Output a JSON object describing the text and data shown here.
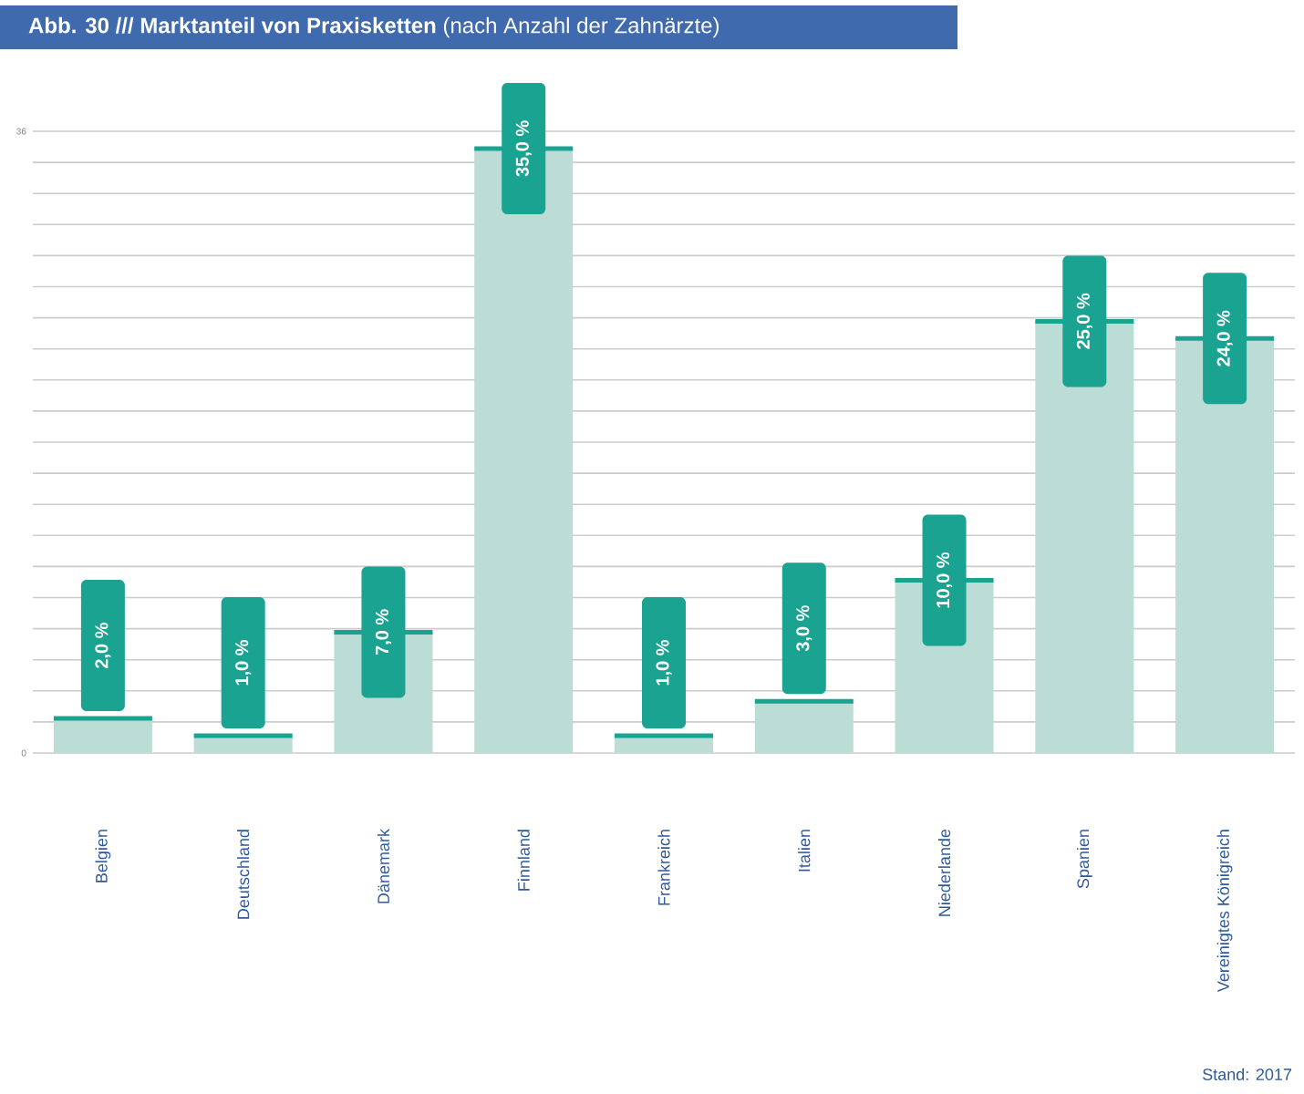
{
  "chart_data": {
    "type": "bar",
    "title": "Abb. 30 /// Marktanteil von Praxisketten",
    "subtitle": "(nach Anzahl der Zahnärzte)",
    "categories": [
      "Belgien",
      "Deutschland",
      "Dänemark",
      "Finnland",
      "Frankreich",
      "Italien",
      "Niederlande",
      "Spanien",
      "Vereinigtes Königreich"
    ],
    "values": [
      2,
      1,
      7,
      35,
      1,
      3,
      10,
      25,
      24
    ],
    "value_labels": [
      "2,0 %",
      "1,0 %",
      "7,0 %",
      "35,0 %",
      "1,0 %",
      "3,0 %",
      "10,0 %",
      "25,0 %",
      "24,0 %"
    ],
    "color": "#bcdcd6",
    "ylim": [
      0,
      36
    ],
    "yticks": [
      0,
      {
        "value": 1.8,
        "label": null
      },
      {
        "value": 3.6,
        "label": null
      },
      {
        "value": 5.4,
        "label": null
      },
      {
        "value": 7.2,
        "label": null
      },
      {
        "value": 9,
        "label": null
      },
      {
        "value": 10.8,
        "label": null
      },
      {
        "value": 12.6,
        "label": null
      },
      {
        "value": 14.4,
        "label": null
      },
      {
        "value": 16.2,
        "label": null
      },
      {
        "value": 18,
        "label": null
      },
      {
        "value": 19.8,
        "label": null
      },
      {
        "value": 21.6,
        "label": null
      },
      {
        "value": 23.4,
        "label": null
      },
      {
        "value": 25.2,
        "label": null
      },
      {
        "value": 27,
        "label": null
      },
      {
        "value": 28.8,
        "label": null
      },
      {
        "value": 30.6,
        "label": null
      },
      {
        "value": 32.4,
        "label": null
      },
      {
        "value": 34.2,
        "label": null
      },
      36
    ],
    "grid": "y",
    "annotations": [
      "Stand: 2017"
    ]
  }
}
